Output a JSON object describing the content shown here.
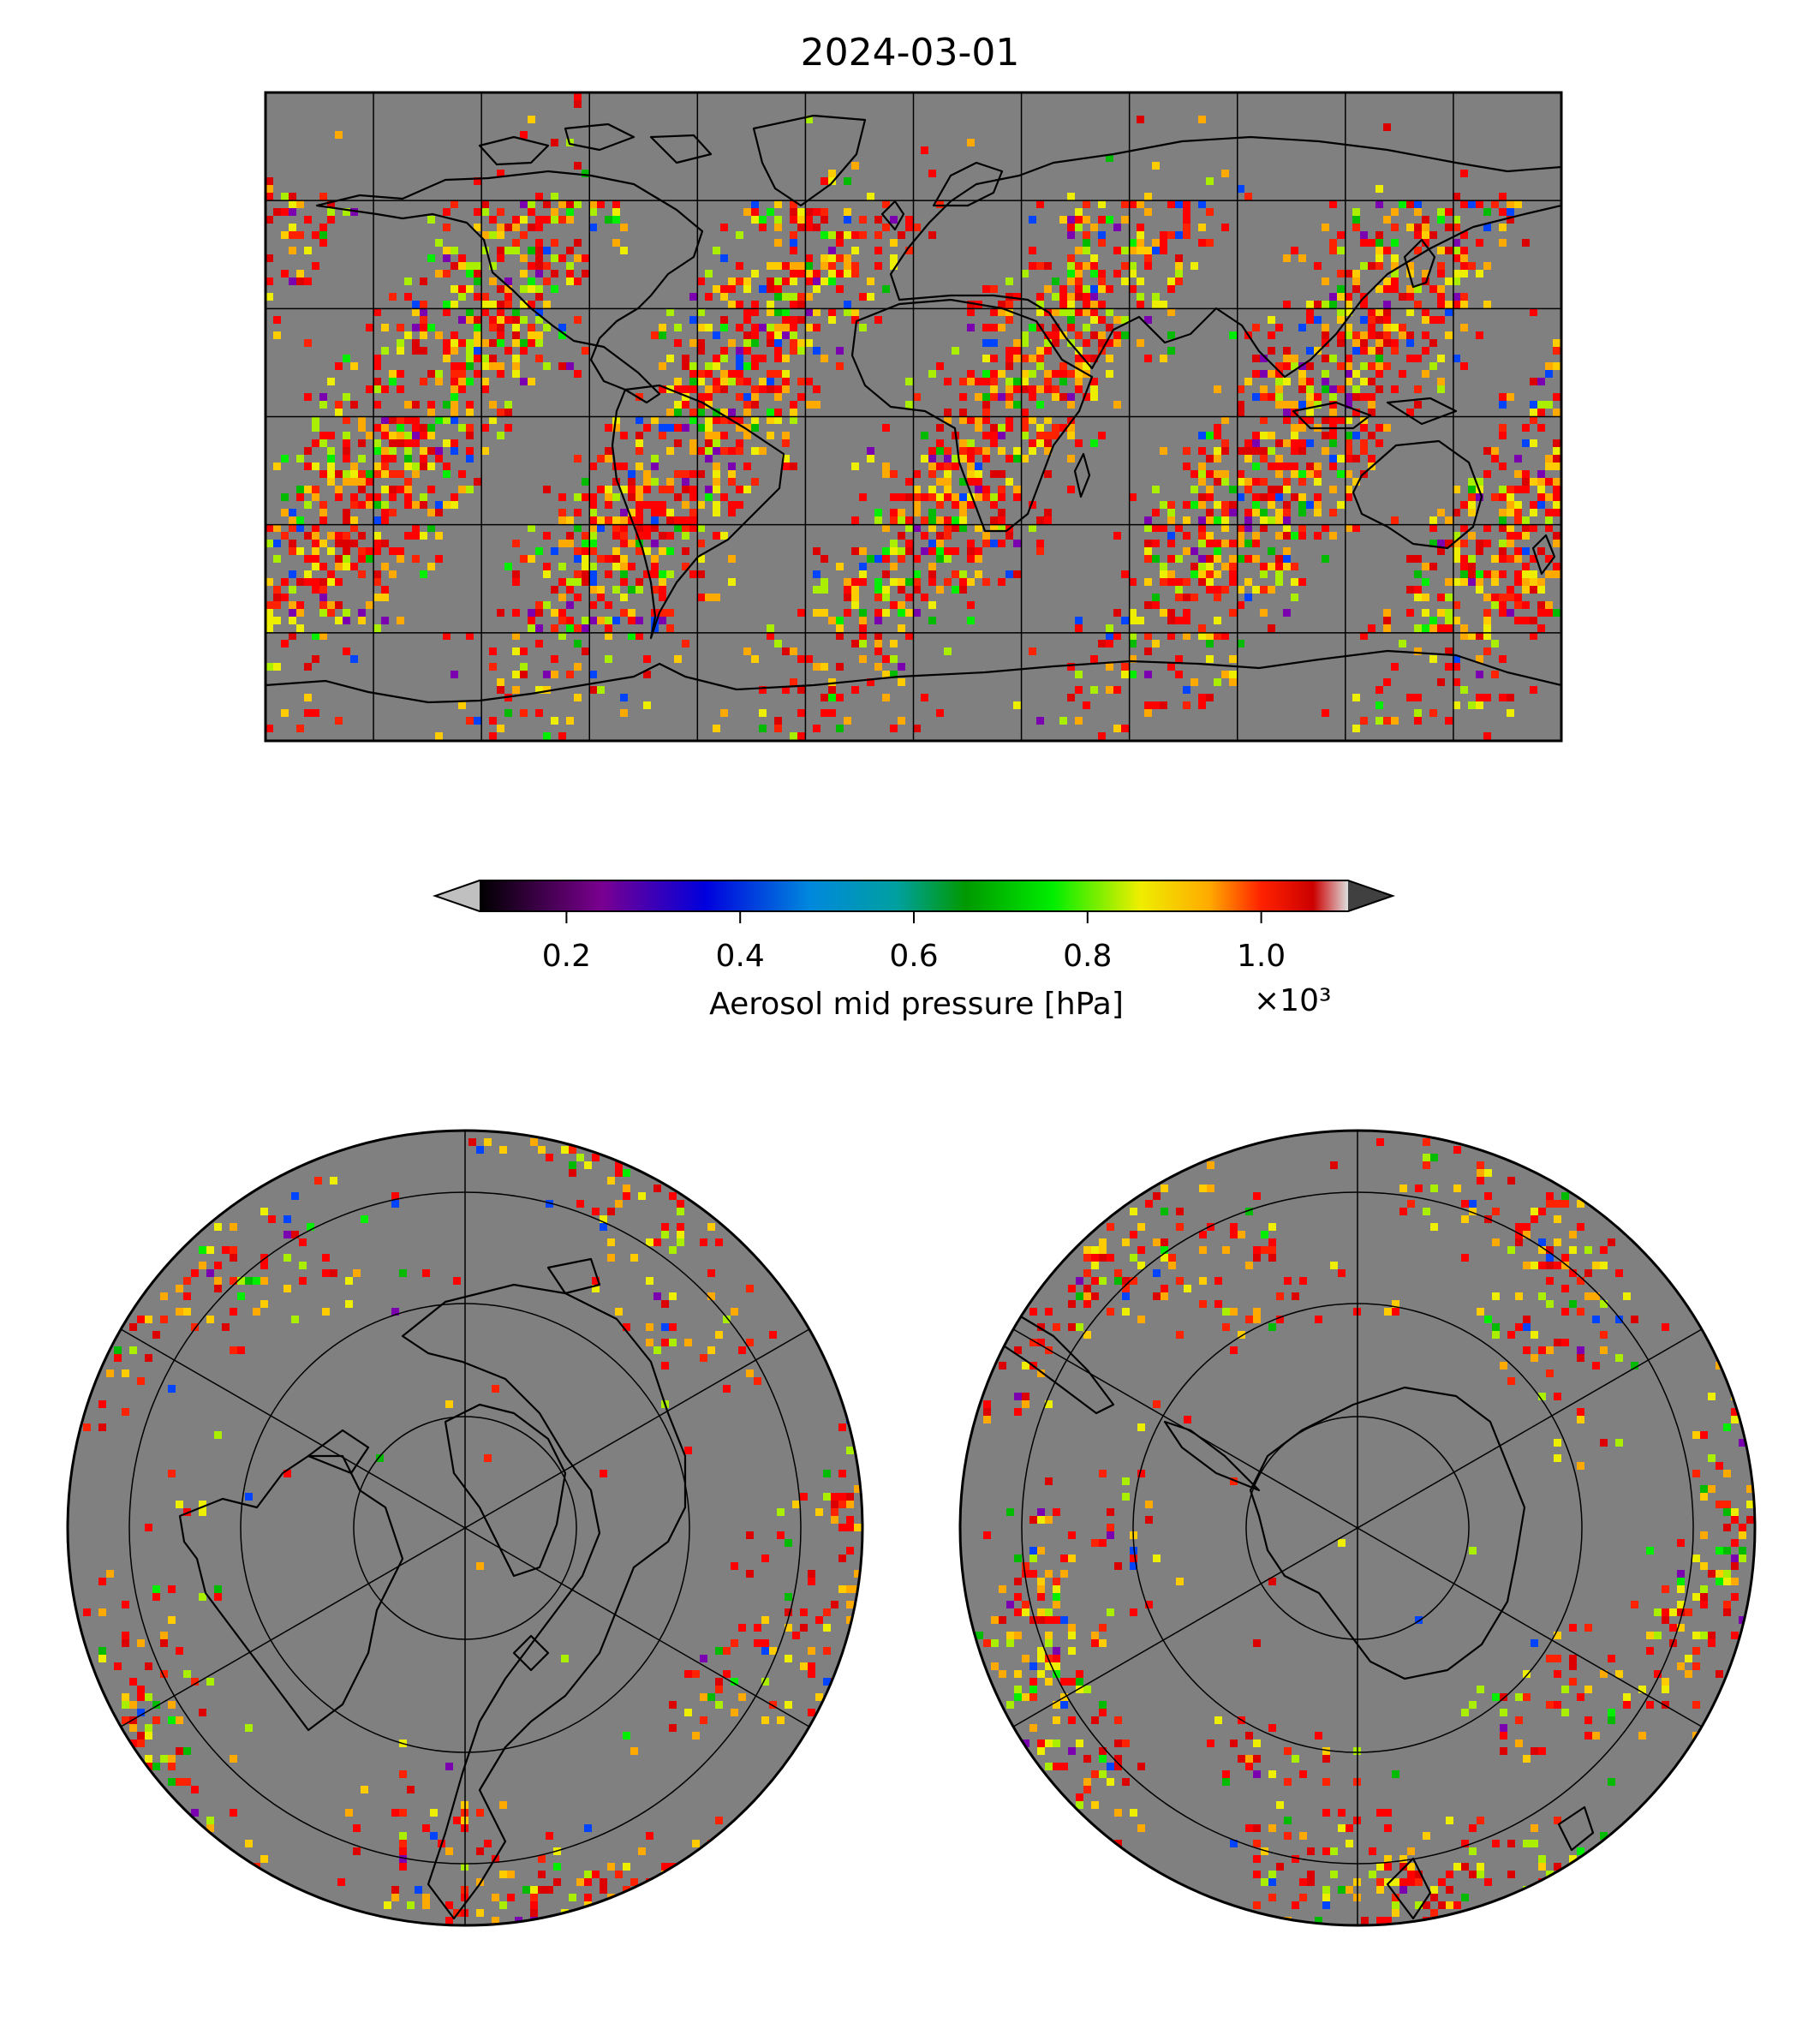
{
  "title": "2024-03-01",
  "colors": {
    "ocean": "#808080",
    "coast": "#000000",
    "grid": "#000000",
    "extend_low": "#c0c0c0",
    "extend_high": "#404040"
  },
  "colorbar": {
    "label": "Aerosol mid pressure [hPa]",
    "exponent": "×10³",
    "min": 0.1,
    "max": 1.1,
    "ticks": [
      {
        "value": 0.2,
        "label": "0.2"
      },
      {
        "value": 0.4,
        "label": "0.4"
      },
      {
        "value": 0.6,
        "label": "0.6"
      },
      {
        "value": 0.8,
        "label": "0.8"
      },
      {
        "value": 1.0,
        "label": "1.0"
      }
    ],
    "stops": [
      {
        "v": 0.0,
        "c": "#000000"
      },
      {
        "v": 0.14,
        "c": "#7a0090"
      },
      {
        "v": 0.26,
        "c": "#0000dd"
      },
      {
        "v": 0.38,
        "c": "#0088dd"
      },
      {
        "v": 0.48,
        "c": "#00a0a0"
      },
      {
        "v": 0.56,
        "c": "#009900"
      },
      {
        "v": 0.66,
        "c": "#00ee00"
      },
      {
        "v": 0.76,
        "c": "#eeee00"
      },
      {
        "v": 0.84,
        "c": "#ffaa00"
      },
      {
        "v": 0.9,
        "c": "#ff2200"
      },
      {
        "v": 0.96,
        "c": "#cc0000"
      },
      {
        "v": 1.0,
        "c": "#dddddd"
      }
    ]
  },
  "maps": {
    "global": {
      "projection": "plate-carree",
      "lon_range": [
        -180,
        180
      ],
      "lat_range": [
        -90,
        90
      ],
      "grid_step": 30
    },
    "north": {
      "projection": "north-polar-stereographic",
      "lat_boundary": 0,
      "gridlines": "60° meridians, 20° parallels"
    },
    "south": {
      "projection": "south-polar-stereographic",
      "lat_boundary": 0,
      "gridlines": "60° meridians, 20° parallels"
    }
  }
}
